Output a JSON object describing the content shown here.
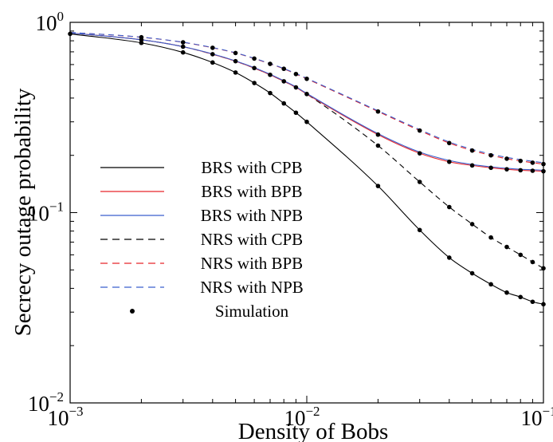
{
  "chart_data": {
    "type": "line",
    "xlabel": "Density of Bobs",
    "ylabel": "Secrecy outage probability",
    "xscale": "log",
    "yscale": "log",
    "xlim": [
      0.001,
      0.1
    ],
    "ylim": [
      0.01,
      1
    ],
    "grid": false,
    "legend_position": "center-left",
    "x_ticks": [
      {
        "value": 0.001,
        "base": "10",
        "exp": "−3"
      },
      {
        "value": 0.01,
        "base": "10",
        "exp": "−2"
      },
      {
        "value": 0.1,
        "base": "10",
        "exp": "−1"
      }
    ],
    "y_ticks": [
      {
        "value": 0.01,
        "base": "10",
        "exp": "−2"
      },
      {
        "value": 0.1,
        "base": "10",
        "exp": "−1"
      },
      {
        "value": 1,
        "base": "10",
        "exp": "0"
      }
    ],
    "series": [
      {
        "name": "BRS with CPB",
        "color": "#000000",
        "dash": "solid",
        "x": [
          0.001,
          0.002,
          0.003,
          0.004,
          0.005,
          0.006,
          0.007,
          0.008,
          0.009,
          0.01,
          0.02,
          0.03,
          0.04,
          0.05,
          0.06,
          0.07,
          0.08,
          0.09,
          0.1
        ],
        "y": [
          0.87,
          0.78,
          0.695,
          0.615,
          0.545,
          0.48,
          0.425,
          0.375,
          0.335,
          0.3,
          0.138,
          0.081,
          0.058,
          0.048,
          0.042,
          0.038,
          0.036,
          0.034,
          0.033
        ]
      },
      {
        "name": "BRS with BPB",
        "color": "#e8262b",
        "dash": "solid",
        "x": [
          0.001,
          0.002,
          0.003,
          0.004,
          0.005,
          0.006,
          0.007,
          0.008,
          0.009,
          0.01,
          0.02,
          0.03,
          0.04,
          0.05,
          0.06,
          0.07,
          0.08,
          0.09,
          0.1
        ],
        "y": [
          0.88,
          0.81,
          0.745,
          0.68,
          0.625,
          0.575,
          0.53,
          0.49,
          0.455,
          0.42,
          0.257,
          0.205,
          0.185,
          0.177,
          0.172,
          0.169,
          0.167,
          0.166,
          0.165
        ]
      },
      {
        "name": "BRS with NPB",
        "color": "#3a5fcd",
        "dash": "solid",
        "x": [
          0.001,
          0.002,
          0.003,
          0.004,
          0.005,
          0.006,
          0.007,
          0.008,
          0.009,
          0.01,
          0.02,
          0.03,
          0.04,
          0.05,
          0.06,
          0.07,
          0.08,
          0.09,
          0.1
        ],
        "y": [
          0.88,
          0.81,
          0.745,
          0.682,
          0.627,
          0.578,
          0.533,
          0.493,
          0.458,
          0.423,
          0.26,
          0.208,
          0.188,
          0.179,
          0.174,
          0.171,
          0.169,
          0.168,
          0.167
        ]
      },
      {
        "name": "NRS with CPB",
        "color": "#000000",
        "dash": "dashed",
        "x": [
          0.001,
          0.002,
          0.003,
          0.004,
          0.005,
          0.006,
          0.007,
          0.008,
          0.009,
          0.01,
          0.02,
          0.03,
          0.04,
          0.05,
          0.06,
          0.07,
          0.08,
          0.09,
          0.1
        ],
        "y": [
          0.88,
          0.81,
          0.745,
          0.68,
          0.625,
          0.575,
          0.53,
          0.49,
          0.455,
          0.42,
          0.225,
          0.145,
          0.107,
          0.087,
          0.074,
          0.066,
          0.06,
          0.055,
          0.051
        ]
      },
      {
        "name": "NRS with BPB",
        "color": "#e8262b",
        "dash": "dashed",
        "x": [
          0.001,
          0.002,
          0.003,
          0.004,
          0.005,
          0.006,
          0.007,
          0.008,
          0.009,
          0.01,
          0.02,
          0.03,
          0.04,
          0.05,
          0.06,
          0.07,
          0.08,
          0.09,
          0.1
        ],
        "y": [
          0.885,
          0.835,
          0.785,
          0.735,
          0.69,
          0.645,
          0.605,
          0.57,
          0.535,
          0.505,
          0.34,
          0.27,
          0.232,
          0.212,
          0.2,
          0.192,
          0.187,
          0.183,
          0.18
        ]
      },
      {
        "name": "NRS with NPB",
        "color": "#3a5fcd",
        "dash": "dashed",
        "x": [
          0.001,
          0.002,
          0.003,
          0.004,
          0.005,
          0.006,
          0.007,
          0.008,
          0.009,
          0.01,
          0.02,
          0.03,
          0.04,
          0.05,
          0.06,
          0.07,
          0.08,
          0.09,
          0.1
        ],
        "y": [
          0.885,
          0.836,
          0.786,
          0.737,
          0.692,
          0.647,
          0.607,
          0.572,
          0.538,
          0.508,
          0.343,
          0.273,
          0.235,
          0.215,
          0.203,
          0.195,
          0.19,
          0.186,
          0.183
        ]
      }
    ],
    "simulation": {
      "name": "Simulation",
      "color": "#000000",
      "points": [
        {
          "x": 0.001,
          "y": 0.87
        },
        {
          "x": 0.002,
          "y": 0.78
        },
        {
          "x": 0.003,
          "y": 0.695
        },
        {
          "x": 0.004,
          "y": 0.615
        },
        {
          "x": 0.005,
          "y": 0.545
        },
        {
          "x": 0.006,
          "y": 0.48
        },
        {
          "x": 0.007,
          "y": 0.425
        },
        {
          "x": 0.008,
          "y": 0.375
        },
        {
          "x": 0.009,
          "y": 0.335
        },
        {
          "x": 0.01,
          "y": 0.3
        },
        {
          "x": 0.02,
          "y": 0.138
        },
        {
          "x": 0.03,
          "y": 0.081
        },
        {
          "x": 0.04,
          "y": 0.058
        },
        {
          "x": 0.05,
          "y": 0.048
        },
        {
          "x": 0.06,
          "y": 0.042
        },
        {
          "x": 0.07,
          "y": 0.038
        },
        {
          "x": 0.08,
          "y": 0.036
        },
        {
          "x": 0.09,
          "y": 0.034
        },
        {
          "x": 0.1,
          "y": 0.033
        },
        {
          "x": 0.002,
          "y": 0.81
        },
        {
          "x": 0.003,
          "y": 0.745
        },
        {
          "x": 0.004,
          "y": 0.68
        },
        {
          "x": 0.005,
          "y": 0.625
        },
        {
          "x": 0.006,
          "y": 0.575
        },
        {
          "x": 0.007,
          "y": 0.53
        },
        {
          "x": 0.008,
          "y": 0.49
        },
        {
          "x": 0.009,
          "y": 0.455
        },
        {
          "x": 0.01,
          "y": 0.42
        },
        {
          "x": 0.02,
          "y": 0.257
        },
        {
          "x": 0.03,
          "y": 0.205
        },
        {
          "x": 0.04,
          "y": 0.185
        },
        {
          "x": 0.05,
          "y": 0.177
        },
        {
          "x": 0.06,
          "y": 0.172
        },
        {
          "x": 0.07,
          "y": 0.169
        },
        {
          "x": 0.08,
          "y": 0.167
        },
        {
          "x": 0.09,
          "y": 0.166
        },
        {
          "x": 0.1,
          "y": 0.165
        },
        {
          "x": 0.02,
          "y": 0.225
        },
        {
          "x": 0.03,
          "y": 0.145
        },
        {
          "x": 0.04,
          "y": 0.107
        },
        {
          "x": 0.05,
          "y": 0.087
        },
        {
          "x": 0.06,
          "y": 0.074
        },
        {
          "x": 0.07,
          "y": 0.066
        },
        {
          "x": 0.08,
          "y": 0.06
        },
        {
          "x": 0.09,
          "y": 0.055
        },
        {
          "x": 0.1,
          "y": 0.051
        },
        {
          "x": 0.002,
          "y": 0.835
        },
        {
          "x": 0.003,
          "y": 0.785
        },
        {
          "x": 0.004,
          "y": 0.735
        },
        {
          "x": 0.005,
          "y": 0.69
        },
        {
          "x": 0.006,
          "y": 0.645
        },
        {
          "x": 0.007,
          "y": 0.605
        },
        {
          "x": 0.008,
          "y": 0.57
        },
        {
          "x": 0.009,
          "y": 0.535
        },
        {
          "x": 0.01,
          "y": 0.505
        },
        {
          "x": 0.02,
          "y": 0.34
        },
        {
          "x": 0.03,
          "y": 0.27
        },
        {
          "x": 0.04,
          "y": 0.232
        },
        {
          "x": 0.05,
          "y": 0.212
        },
        {
          "x": 0.06,
          "y": 0.2
        },
        {
          "x": 0.07,
          "y": 0.192
        },
        {
          "x": 0.08,
          "y": 0.187
        },
        {
          "x": 0.09,
          "y": 0.183
        },
        {
          "x": 0.1,
          "y": 0.18
        }
      ]
    }
  }
}
